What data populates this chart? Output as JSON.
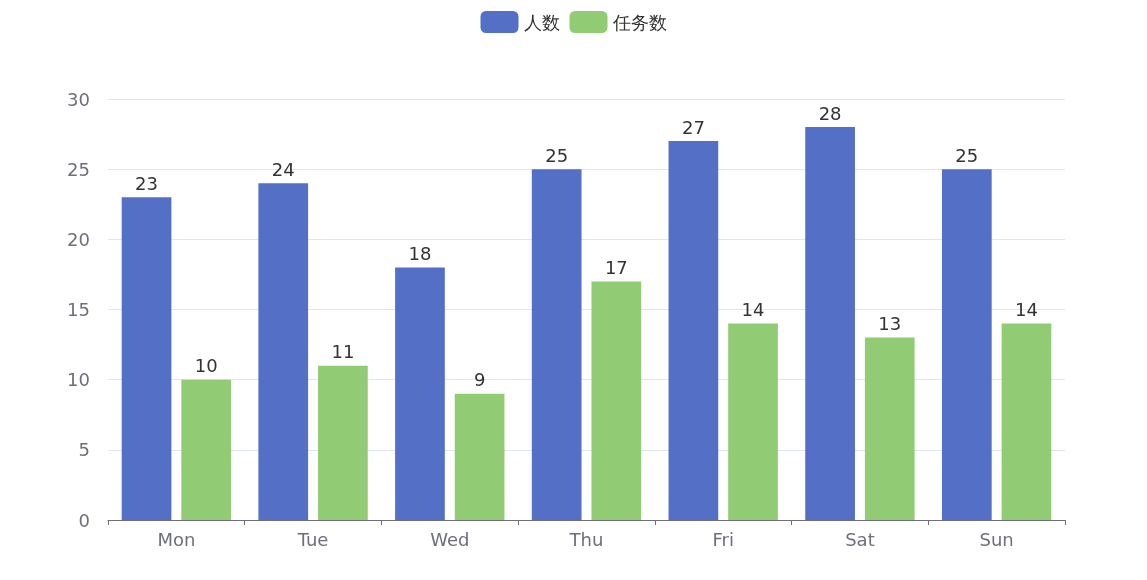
{
  "chart_data": {
    "type": "bar",
    "categories": [
      "Mon",
      "Tue",
      "Wed",
      "Thu",
      "Fri",
      "Sat",
      "Sun"
    ],
    "series": [
      {
        "name": "人数",
        "color": "#5470c6",
        "values": [
          23,
          24,
          18,
          25,
          27,
          28,
          25
        ]
      },
      {
        "name": "任务数",
        "color": "#91cc75",
        "values": [
          10,
          11,
          9,
          17,
          14,
          13,
          14
        ]
      }
    ],
    "ylim": [
      0,
      30
    ],
    "yticks": [
      0,
      5,
      10,
      15,
      20,
      25,
      30
    ],
    "grid": "y",
    "legend": "top",
    "data_labels": true
  }
}
